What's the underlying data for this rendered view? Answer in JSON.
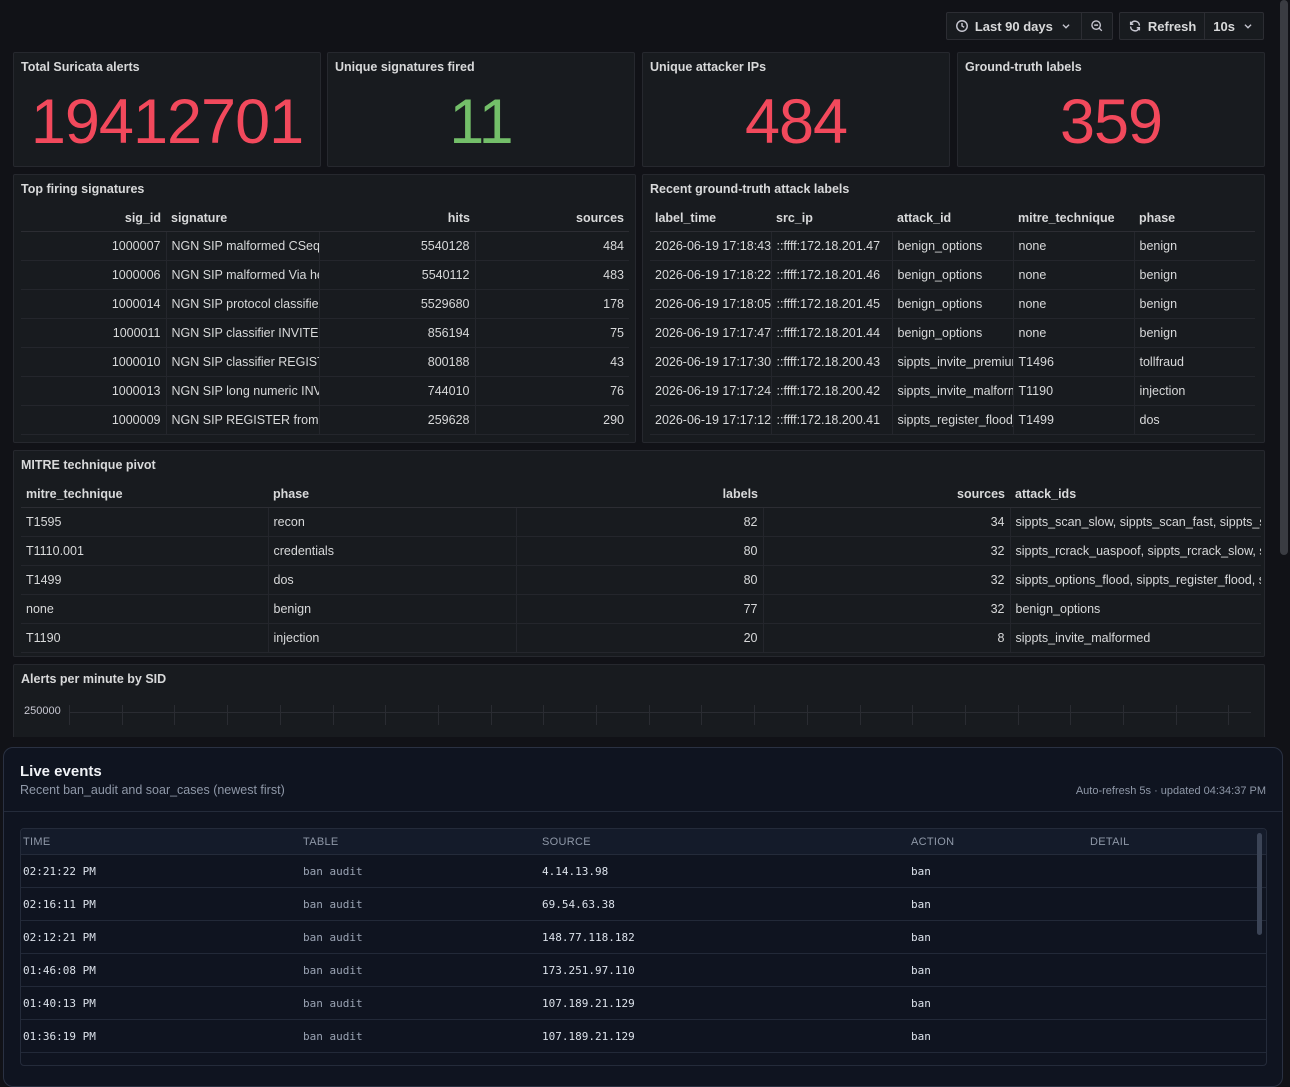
{
  "toolbar": {
    "time_range": "Last 90 days",
    "refresh_label": "Refresh",
    "refresh_interval": "10s"
  },
  "stats": [
    {
      "title": "Total Suricata alerts",
      "value": "19412701",
      "color": "#f2495c"
    },
    {
      "title": "Unique signatures fired",
      "value": "11",
      "color": "#73bf69"
    },
    {
      "title": "Unique attacker IPs",
      "value": "484",
      "color": "#f2495c"
    },
    {
      "title": "Ground-truth labels",
      "value": "359",
      "color": "#f2495c"
    }
  ],
  "top_signatures": {
    "title": "Top firing signatures",
    "columns": [
      "sig_id",
      "signature",
      "hits",
      "sources"
    ],
    "rows": [
      [
        "1000007",
        "NGN SIP malformed CSeq h",
        "5540128",
        "484"
      ],
      [
        "1000006",
        "NGN SIP malformed Via hea",
        "5540112",
        "483"
      ],
      [
        "1000014",
        "NGN SIP protocol classifier",
        "5529680",
        "178"
      ],
      [
        "1000011",
        "NGN SIP classifier INVITE r",
        "856194",
        "75"
      ],
      [
        "1000010",
        "NGN SIP classifier REGISTE",
        "800188",
        "43"
      ],
      [
        "1000013",
        "NGN SIP long numeric INVI",
        "744010",
        "76"
      ],
      [
        "1000009",
        "NGN SIP REGISTER from sc",
        "259628",
        "290"
      ]
    ]
  },
  "ground_truth": {
    "title": "Recent ground-truth attack labels",
    "columns": [
      "label_time",
      "src_ip",
      "attack_id",
      "mitre_technique",
      "phase"
    ],
    "rows": [
      [
        "2026-06-19 17:18:43",
        "::ffff:172.18.201.47",
        "benign_options",
        "none",
        "benign"
      ],
      [
        "2026-06-19 17:18:22",
        "::ffff:172.18.201.46",
        "benign_options",
        "none",
        "benign"
      ],
      [
        "2026-06-19 17:18:05",
        "::ffff:172.18.201.45",
        "benign_options",
        "none",
        "benign"
      ],
      [
        "2026-06-19 17:17:47",
        "::ffff:172.18.201.44",
        "benign_options",
        "none",
        "benign"
      ],
      [
        "2026-06-19 17:17:30",
        "::ffff:172.18.200.43",
        "sippts_invite_premium",
        "T1496",
        "tollfraud"
      ],
      [
        "2026-06-19 17:17:24",
        "::ffff:172.18.200.42",
        "sippts_invite_malform",
        "T1190",
        "injection"
      ],
      [
        "2026-06-19 17:17:12",
        "::ffff:172.18.200.41",
        "sippts_register_flood_",
        "T1499",
        "dos"
      ]
    ]
  },
  "mitre": {
    "title": "MITRE technique pivot",
    "columns": [
      "mitre_technique",
      "phase",
      "labels",
      "sources",
      "attack_ids"
    ],
    "rows": [
      [
        "T1595",
        "recon",
        "82",
        "34",
        "sippts_scan_slow, sippts_scan_fast, sippts_sc"
      ],
      [
        "T1110.001",
        "credentials",
        "80",
        "32",
        "sippts_rcrack_uaspoof, sippts_rcrack_slow, s"
      ],
      [
        "T1499",
        "dos",
        "80",
        "32",
        "sippts_options_flood, sippts_register_flood, s"
      ],
      [
        "none",
        "benign",
        "77",
        "32",
        "benign_options"
      ],
      [
        "T1190",
        "injection",
        "20",
        "8",
        "sippts_invite_malformed"
      ]
    ]
  },
  "alerts_chart": {
    "title": "Alerts per minute by SID",
    "ytick": "250000"
  },
  "live": {
    "title": "Live events",
    "subtitle": "Recent ban_audit and soar_cases (newest first)",
    "updated": "Auto-refresh 5s · updated 04:34:37 PM",
    "columns": [
      "TIME",
      "TABLE",
      "SOURCE",
      "ACTION",
      "DETAIL"
    ],
    "rows": [
      [
        "02:21:22 PM",
        "ban audit",
        "4.14.13.98",
        "ban",
        ""
      ],
      [
        "02:16:11 PM",
        "ban audit",
        "69.54.63.38",
        "ban",
        ""
      ],
      [
        "02:12:21 PM",
        "ban audit",
        "148.77.118.182",
        "ban",
        ""
      ],
      [
        "01:46:08 PM",
        "ban audit",
        "173.251.97.110",
        "ban",
        ""
      ],
      [
        "01:40:13 PM",
        "ban audit",
        "107.189.21.129",
        "ban",
        ""
      ],
      [
        "01:36:19 PM",
        "ban audit",
        "107.189.21.129",
        "ban",
        ""
      ],
      [
        "01:33:28 PM",
        "ban audit",
        "211.217.171.27",
        "ban",
        ""
      ]
    ]
  }
}
